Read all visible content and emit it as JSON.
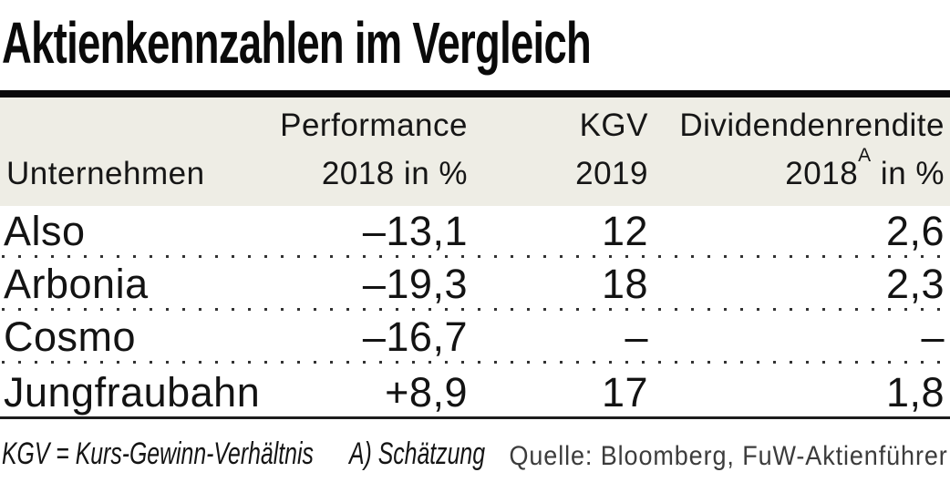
{
  "title": "Aktienkennzahlen im Vergleich",
  "chart_data": {
    "type": "table",
    "title": "Aktienkennzahlen im Vergleich",
    "columns": [
      "Unternehmen",
      "Performance 2018 in %",
      "KGV 2019",
      "Dividendenrendite 2018(A) in %"
    ],
    "rows": [
      [
        "Also",
        "–13,1",
        "12",
        "2,6"
      ],
      [
        "Arbonia",
        "–19,3",
        "18",
        "2,3"
      ],
      [
        "Cosmo",
        "–16,7",
        "–",
        "–"
      ],
      [
        "Jungfraubahn",
        "+8,9",
        "17",
        "1,8"
      ]
    ]
  },
  "header": {
    "col1_line2": "Unternehmen",
    "col2_line1": "Performance",
    "col2_line2": "2018 in %",
    "col3_line1": "KGV",
    "col3_line2": "2019",
    "col4_line1": "Dividendenrendite",
    "col4_line2_year": "2018",
    "col4_line2_sup": "A",
    "col4_line2_rest": " in %"
  },
  "footer": {
    "note1": "KGV = Kurs-Gewinn-Verhältnis",
    "note2": "A) Schätzung",
    "source": "Quelle: Bloomberg, FuW-Aktienführer"
  },
  "colors": {
    "header_bg": "#eeede5",
    "rule": "#0a0a0a",
    "text": "#111111",
    "dots": "#333333"
  }
}
